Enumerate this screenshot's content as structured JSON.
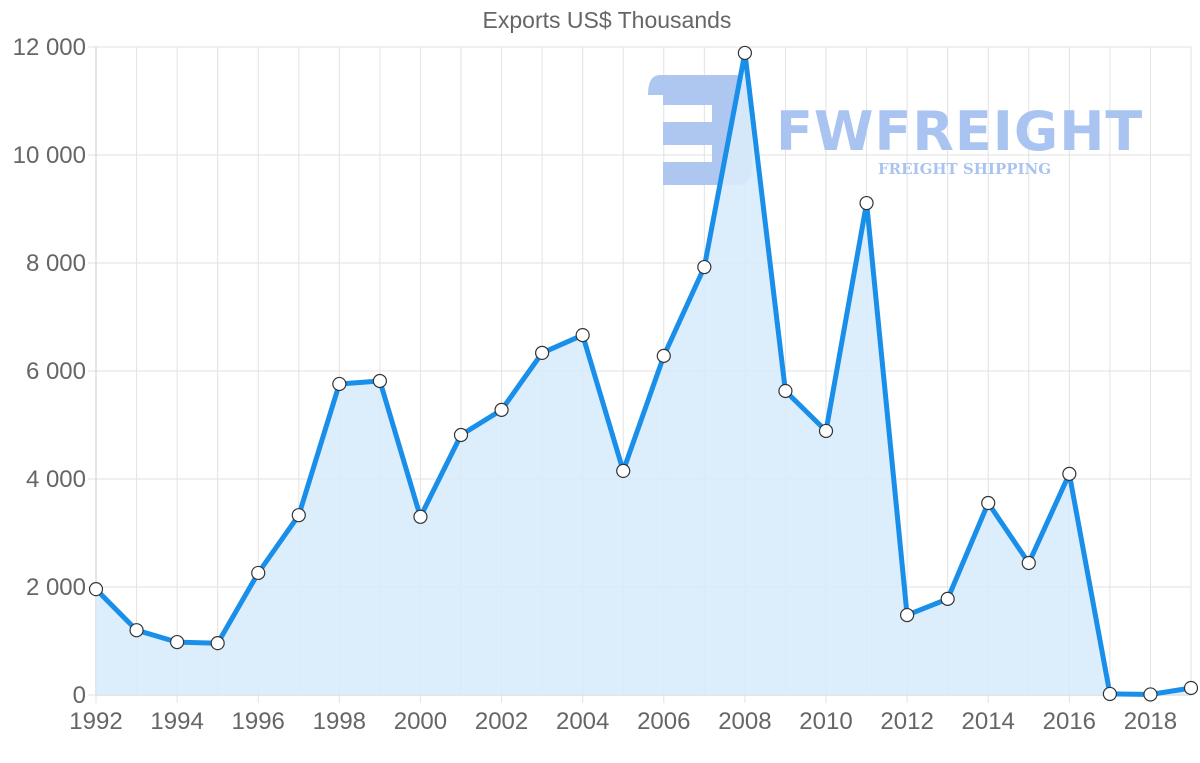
{
  "chart_data": {
    "type": "line",
    "title": "Exports US$ Thousands",
    "xlabel": "",
    "ylabel": "",
    "x": [
      1992,
      1993,
      1994,
      1995,
      1996,
      1997,
      1998,
      1999,
      2000,
      2001,
      2002,
      2003,
      2004,
      2005,
      2006,
      2007,
      2008,
      2009,
      2010,
      2011,
      2012,
      2013,
      2014,
      2015,
      2016,
      2017,
      2018,
      2019
    ],
    "series": [
      {
        "name": "Exports US$ Thousands",
        "values": [
          1960,
          1200,
          980,
          960,
          2260,
          3330,
          5760,
          5815,
          3300,
          4815,
          5280,
          6335,
          6665,
          4150,
          6280,
          7925,
          11890,
          5630,
          4890,
          9110,
          1480,
          1780,
          3555,
          2445,
          4095,
          20,
          10,
          130
        ]
      }
    ],
    "ylim": [
      0,
      12000
    ],
    "yticks": [
      "0",
      "2 000",
      "4 000",
      "6 000",
      "8 000",
      "10 000",
      "12 000"
    ],
    "yticks_values": [
      0,
      2000,
      4000,
      6000,
      8000,
      10000,
      12000
    ],
    "xticks": [
      "1992",
      "1994",
      "1996",
      "1998",
      "2000",
      "2002",
      "2004",
      "2006",
      "2008",
      "2010",
      "2012",
      "2014",
      "2016",
      "2018"
    ],
    "grid": true,
    "filled_area": true,
    "legend": "none",
    "colors": {
      "line": "#1a8fea",
      "fill": "#d8ebfb",
      "grid": "#e2e2e2",
      "point_fill": "#ffffff",
      "point_stroke": "#333333",
      "text": "#666666"
    }
  },
  "watermark": {
    "brand": "FWFREIGHT",
    "tagline": "FREIGHT SHIPPING",
    "color": "#a9c4f0"
  }
}
